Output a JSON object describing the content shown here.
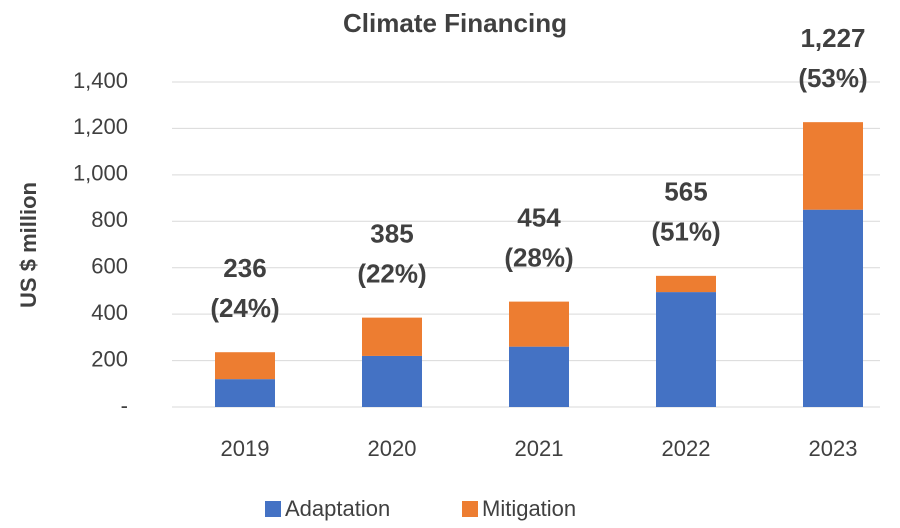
{
  "chart_data": {
    "type": "bar",
    "stacked": true,
    "title": "Climate Financing",
    "y_label": "US $ million",
    "categories": [
      "2019",
      "2020",
      "2021",
      "2022",
      "2023"
    ],
    "series": [
      {
        "name": "Adaptation",
        "color": "#4472c4",
        "values": [
          120,
          220,
          260,
          495,
          850
        ]
      },
      {
        "name": "Mitigation",
        "color": "#ed7d31",
        "values": [
          116,
          165,
          194,
          70,
          377
        ]
      }
    ],
    "totals": [
      236,
      385,
      454,
      565,
      1227
    ],
    "total_labels": [
      "236",
      "385",
      "454",
      "565",
      "1,227"
    ],
    "share_labels": [
      "(24%)",
      "(22%)",
      "(28%)",
      "(51%)",
      "(53%)"
    ],
    "ylim": [
      0,
      1400
    ],
    "yticks": [
      {
        "value": 0,
        "label": "-"
      },
      200,
      400,
      600,
      800,
      {
        "value": 1000,
        "label": "1,000"
      },
      {
        "value": 1200,
        "label": "1,200"
      },
      {
        "value": 1400,
        "label": "1,400"
      }
    ],
    "grid": true,
    "legend": "bottom"
  }
}
